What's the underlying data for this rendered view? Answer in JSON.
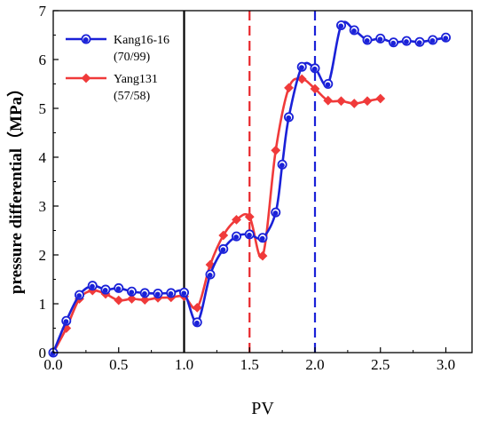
{
  "chart_data": {
    "type": "line",
    "xlabel": "PV",
    "ylabel": "pressure differential（MPa）",
    "xlim": [
      0,
      3.2
    ],
    "ylim": [
      0,
      7
    ],
    "x_ticks": [
      "0.0",
      "0.5",
      "1.0",
      "1.5",
      "2.0",
      "2.5",
      "3.0"
    ],
    "y_ticks": [
      "0",
      "1",
      "2",
      "3",
      "4",
      "5",
      "6",
      "7"
    ],
    "vertical_lines": [
      {
        "x": 1.0,
        "color": "#000000",
        "style": "solid"
      },
      {
        "x": 1.5,
        "color": "#e8262b",
        "style": "dashed"
      },
      {
        "x": 2.0,
        "color": "#1a21d8",
        "style": "dashed"
      }
    ],
    "legend_position": "top-left",
    "series": [
      {
        "name": "Kang16-16",
        "note": "(70/99)",
        "color": "#1a21d8",
        "marker": "circle",
        "x": [
          0,
          0.1,
          0.2,
          0.3,
          0.4,
          0.5,
          0.6,
          0.7,
          0.8,
          0.9,
          1.0,
          1.1,
          1.2,
          1.3,
          1.4,
          1.5,
          1.6,
          1.7,
          1.75,
          1.8,
          1.9,
          2.0,
          2.1,
          2.2,
          2.3,
          2.4,
          2.5,
          2.6,
          2.7,
          2.8,
          2.9,
          3.0
        ],
        "values": [
          0.0,
          0.65,
          1.18,
          1.37,
          1.29,
          1.32,
          1.25,
          1.22,
          1.21,
          1.22,
          1.23,
          0.62,
          1.6,
          2.12,
          2.38,
          2.42,
          2.35,
          2.87,
          3.85,
          4.82,
          5.85,
          5.82,
          5.5,
          6.7,
          6.6,
          6.4,
          6.43,
          6.35,
          6.38,
          6.36,
          6.4,
          6.45
        ]
      },
      {
        "name": "Yang131",
        "note": "(57/58)",
        "color": "#f03a3a",
        "marker": "diamond",
        "x": [
          0,
          0.1,
          0.2,
          0.3,
          0.4,
          0.5,
          0.6,
          0.7,
          0.8,
          0.9,
          1.0,
          1.1,
          1.2,
          1.3,
          1.4,
          1.5,
          1.6,
          1.7,
          1.8,
          1.9,
          2.0,
          2.1,
          2.2,
          2.3,
          2.4,
          2.5
        ],
        "values": [
          0.0,
          0.5,
          1.1,
          1.27,
          1.2,
          1.07,
          1.1,
          1.08,
          1.12,
          1.13,
          1.15,
          0.92,
          1.8,
          2.4,
          2.72,
          2.78,
          1.98,
          4.14,
          5.42,
          5.6,
          5.4,
          5.16,
          5.15,
          5.1,
          5.15,
          5.2
        ]
      }
    ]
  }
}
